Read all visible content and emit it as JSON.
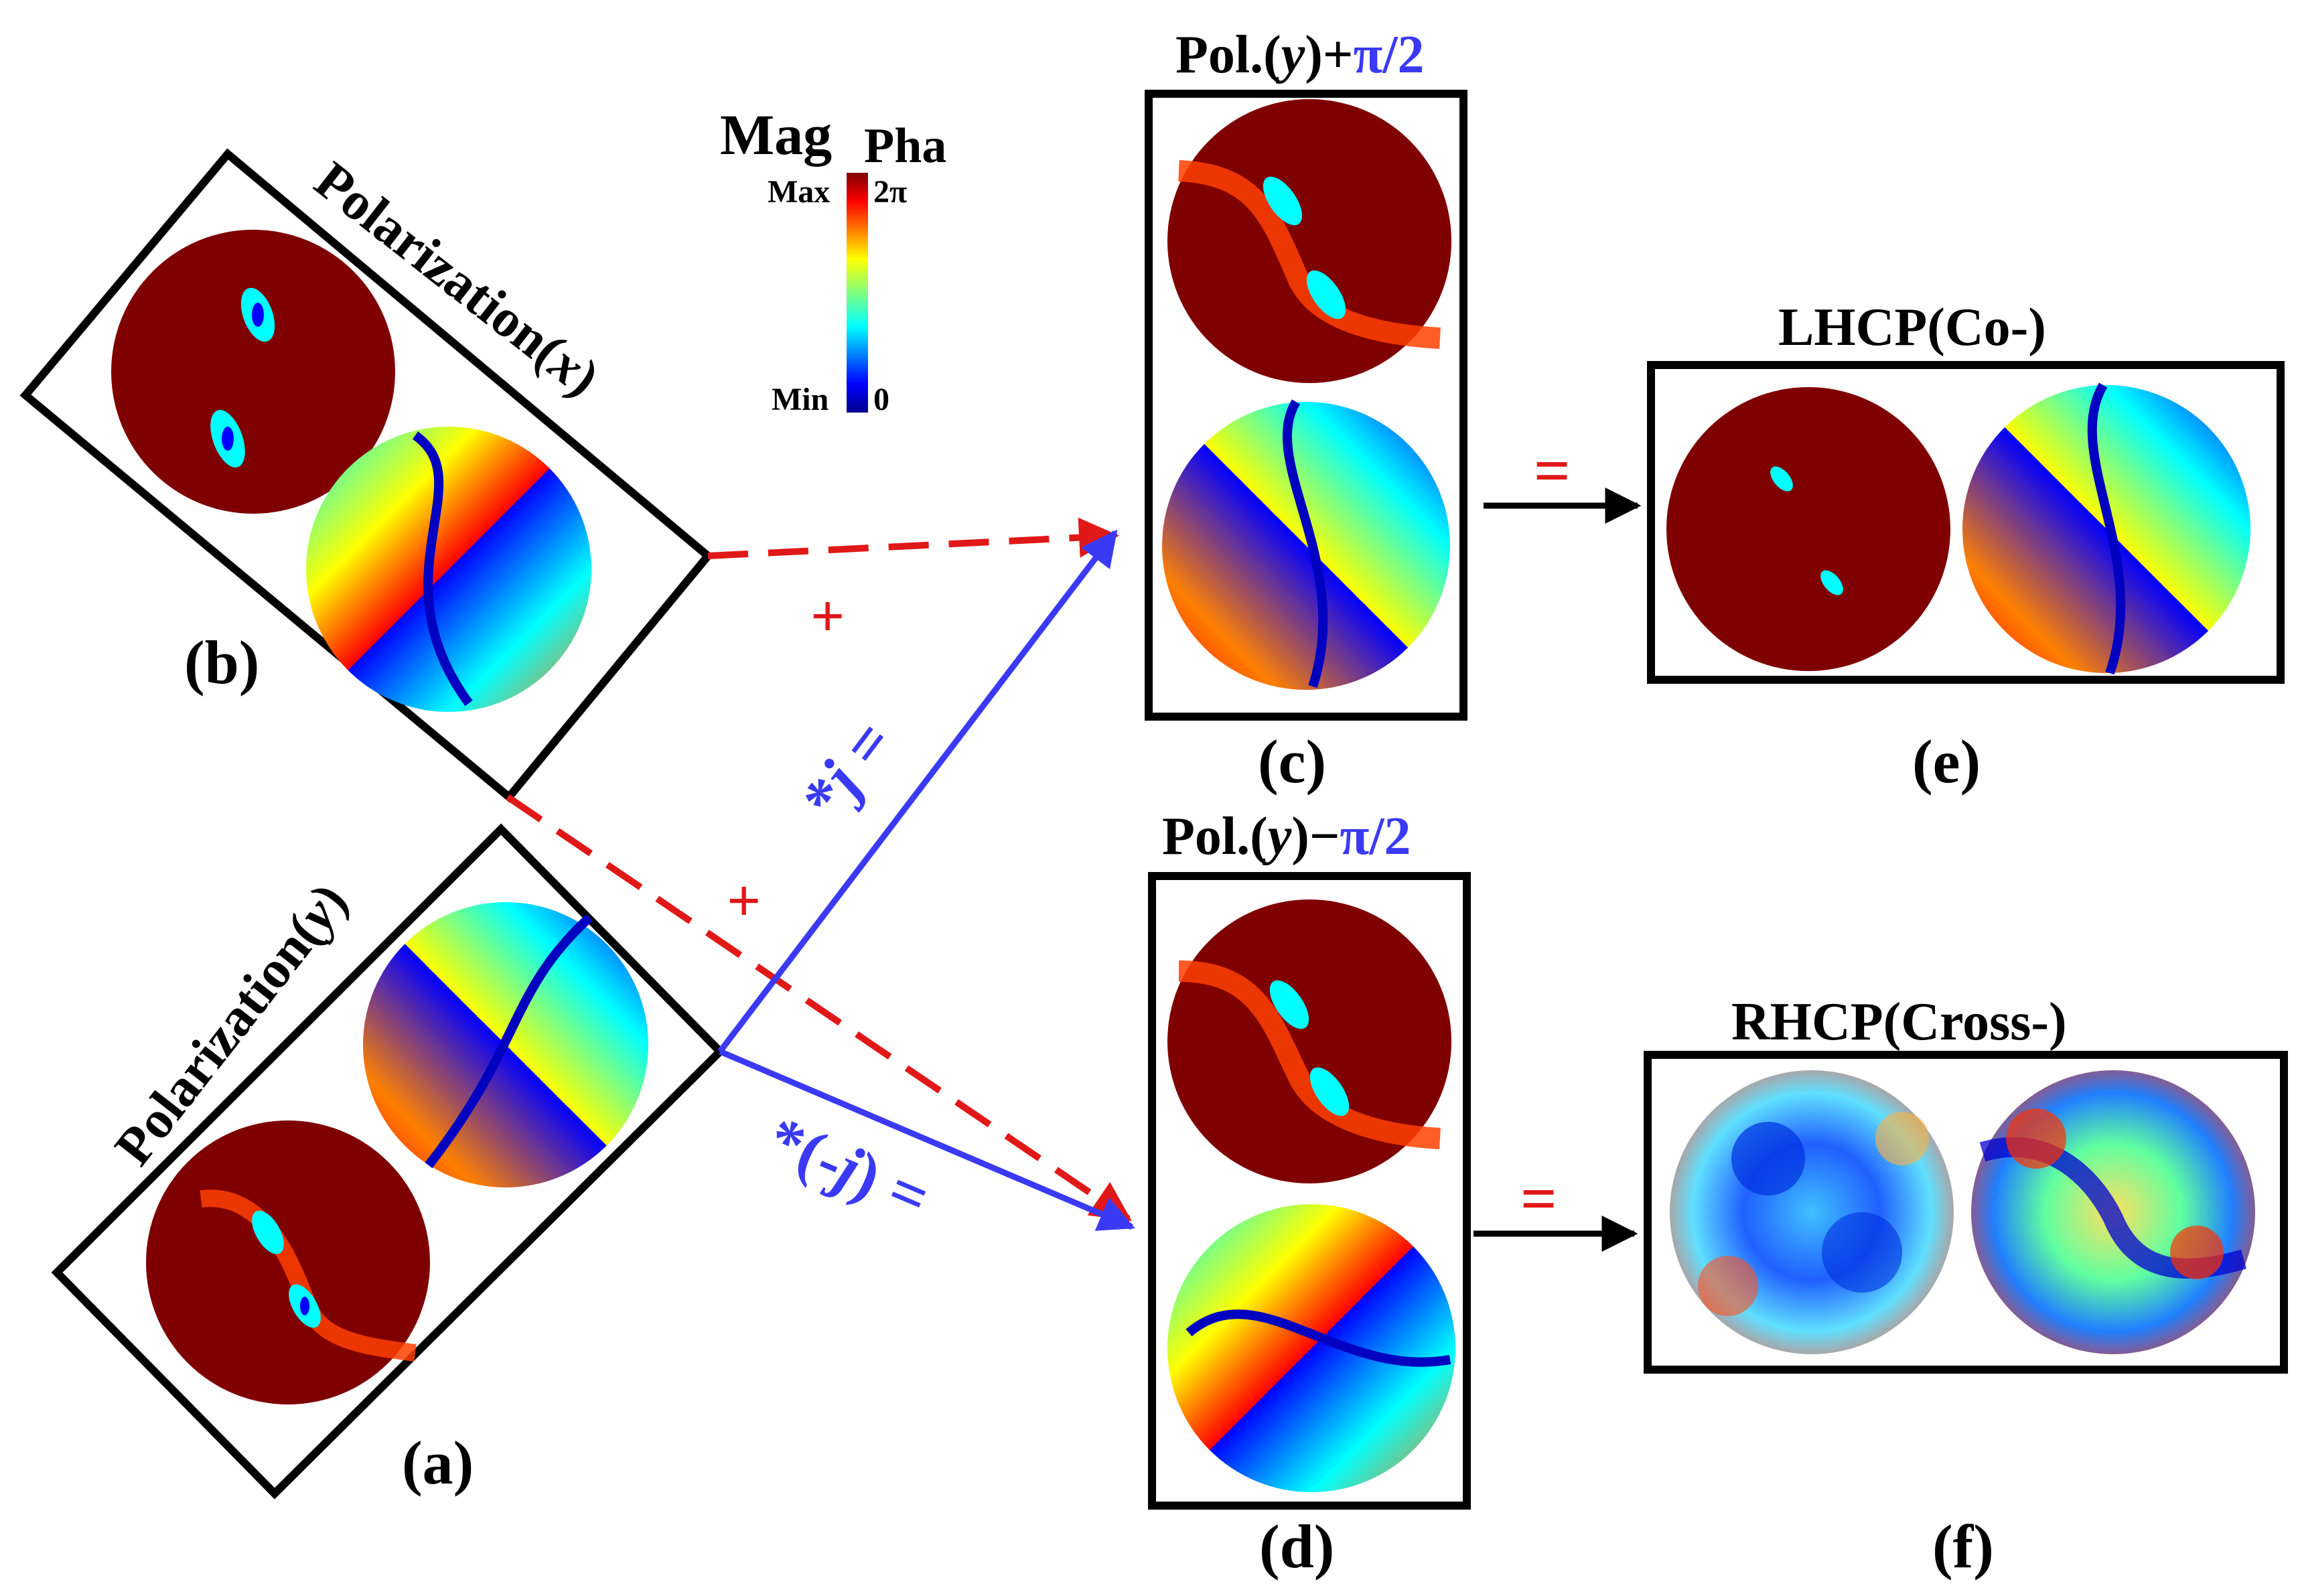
{
  "colorbar": {
    "mag_title": "Mag",
    "pha_title": "Pha",
    "mag_max": "Max",
    "mag_min": "Min",
    "pha_max": "2π",
    "pha_min": "0"
  },
  "panels": {
    "a": {
      "label": "(a)",
      "title_prefix": "Polarization(",
      "title_var": "y",
      "title_suffix": ")"
    },
    "b": {
      "label": "(b)",
      "title_prefix": "Polarization(",
      "title_var": "x",
      "title_suffix": ")"
    },
    "c": {
      "label": "(c)",
      "title_prefix": "Pol.(",
      "title_var": "y",
      "title_mid": ")+",
      "title_phase": "π/2"
    },
    "d": {
      "label": "(d)",
      "title_prefix": "Pol.(",
      "title_var": "y",
      "title_mid": ")−",
      "title_phase": "π/2"
    },
    "e": {
      "label": "(e)",
      "title": "LHCP(Co-)"
    },
    "f": {
      "label": "(f)",
      "title": "RHCP(Cross-)"
    }
  },
  "operators": {
    "plus": "+",
    "equals": "=",
    "times_j_prefix": "*",
    "times_j_var": "j",
    "times_j_suffix": " =",
    "times_neg_j_prefix": "*(-",
    "times_neg_j_var": "j",
    "times_neg_j_suffix": ") ="
  },
  "colors": {
    "dark_red": "#7f0000",
    "arrow_blue": "#3a3af5",
    "arrow_red": "#e01818",
    "jet": [
      "#00008f",
      "#0000ff",
      "#0080ff",
      "#00ffff",
      "#80ff80",
      "#ffff00",
      "#ff8000",
      "#ff0000",
      "#800000"
    ]
  }
}
